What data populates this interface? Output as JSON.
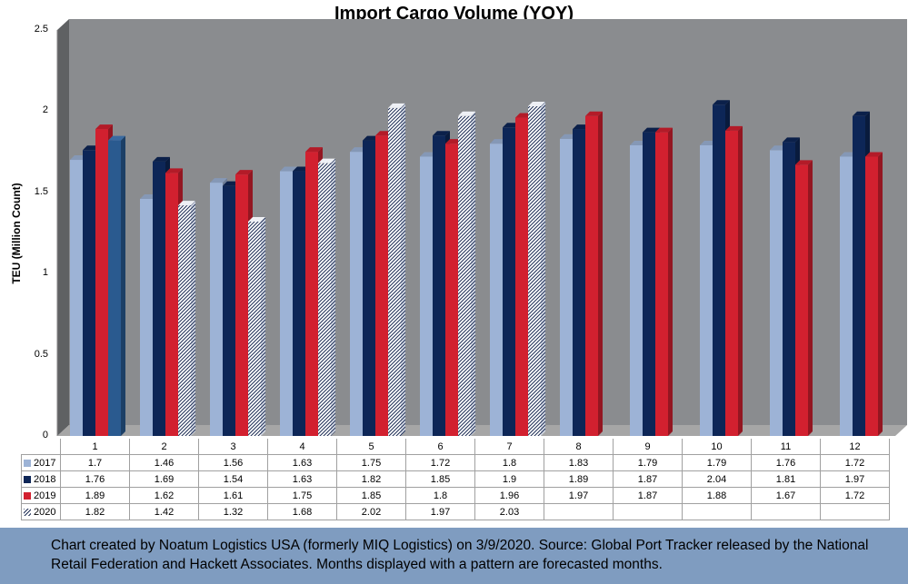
{
  "chart_data": {
    "type": "bar",
    "title": "Import Cargo Volume (YOY)",
    "ylabel": "TEU (Million Count)",
    "xlabel": "",
    "ylim": [
      0,
      2.5
    ],
    "yticks": [
      "0",
      "0.5",
      "1",
      "1.5",
      "2",
      "2.5"
    ],
    "categories": [
      "1",
      "2",
      "3",
      "4",
      "5",
      "6",
      "7",
      "8",
      "9",
      "10",
      "11",
      "12"
    ],
    "series": [
      {
        "name": "2017",
        "color": "#9db3d6",
        "values": [
          1.7,
          1.46,
          1.56,
          1.63,
          1.75,
          1.72,
          1.8,
          1.83,
          1.79,
          1.79,
          1.76,
          1.72
        ]
      },
      {
        "name": "2018",
        "color": "#0d2657",
        "values": [
          1.76,
          1.69,
          1.54,
          1.63,
          1.82,
          1.85,
          1.9,
          1.89,
          1.87,
          2.04,
          1.81,
          1.97
        ]
      },
      {
        "name": "2019",
        "color": "#d2202f",
        "values": [
          1.89,
          1.62,
          1.61,
          1.75,
          1.85,
          1.8,
          1.96,
          1.97,
          1.87,
          1.88,
          1.67,
          1.72
        ]
      },
      {
        "name": "2020",
        "color": "#ffffff",
        "pattern": "diagonal-hatch",
        "values": [
          1.82,
          1.42,
          1.32,
          1.68,
          2.02,
          1.97,
          2.03,
          null,
          null,
          null,
          null,
          null
        ]
      }
    ],
    "grid": false,
    "legend": "data-table"
  },
  "footer": {
    "text": "Chart created by Noatum Logistics USA (formerly MIQ Logistics) on 3/9/2020. Source: Global Port Tracker released by the National Retail Federation and Hackett Associates. Months displayed with a pattern are forecasted months."
  },
  "colors": {
    "wall": "#8a8c8f",
    "floor": "#a6a6a6",
    "footer_bg": "#7f9cc0"
  }
}
